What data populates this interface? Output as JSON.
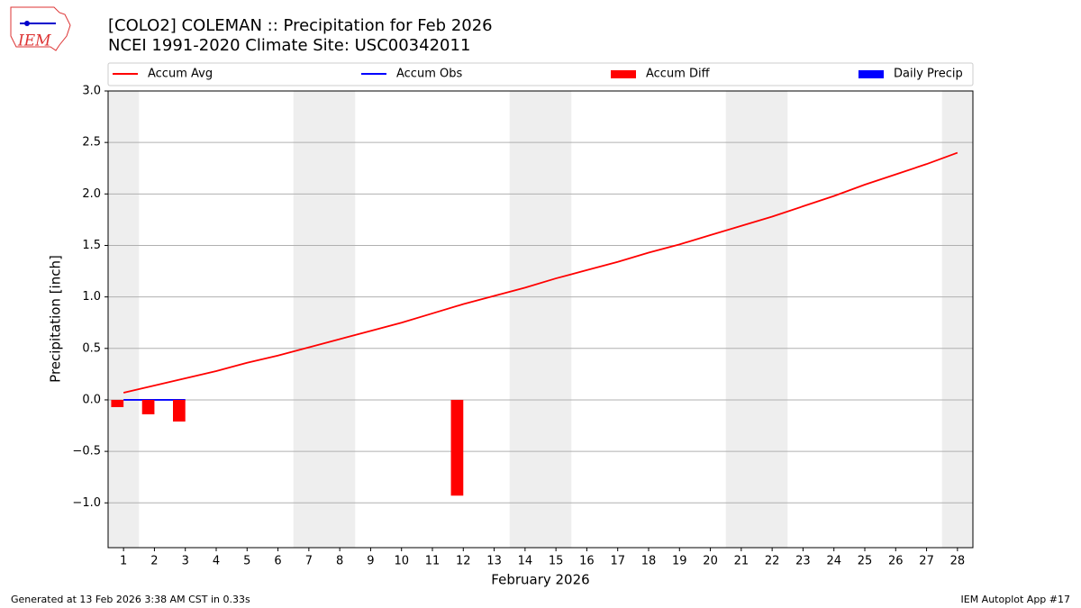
{
  "chart_data": {
    "type": "line",
    "title": "[COLO2] COLEMAN :: Precipitation for Feb 2026",
    "subtitle": "NCEI 1991-2020 Climate Site: USC00342011",
    "logo_text": "IEM",
    "x_label": "February 2026",
    "y_label": "Precipitation [inch]",
    "footer_left": "Generated at 13 Feb 2026 3:38 AM CST in 0.33s",
    "footer_right": "IEM Autoplot App #17",
    "x": [
      1,
      2,
      3,
      4,
      5,
      6,
      7,
      8,
      9,
      10,
      11,
      12,
      13,
      14,
      15,
      16,
      17,
      18,
      19,
      20,
      21,
      22,
      23,
      24,
      25,
      26,
      27,
      28
    ],
    "xlim": [
      0.5,
      28.5
    ],
    "xticks": [
      1,
      2,
      3,
      4,
      5,
      6,
      7,
      8,
      9,
      10,
      11,
      12,
      13,
      14,
      15,
      16,
      17,
      18,
      19,
      20,
      21,
      22,
      23,
      24,
      25,
      26,
      27,
      28
    ],
    "ylim": [
      -1.435,
      3.0
    ],
    "yticks": [
      {
        "value": -1.0,
        "label": "−1.0"
      },
      {
        "value": -0.5,
        "label": "−0.5"
      },
      {
        "value": 0,
        "label": "0.0"
      },
      {
        "value": 0.5,
        "label": "0.5"
      },
      {
        "value": 1.0,
        "label": "1.0"
      },
      {
        "value": 1.5,
        "label": "1.5"
      },
      {
        "value": 2.0,
        "label": "2.0"
      },
      {
        "value": 2.5,
        "label": "2.5"
      },
      {
        "value": 3.0,
        "label": "3.0"
      }
    ],
    "grid": true,
    "weekend_shading": [
      [
        0.5,
        1.5
      ],
      [
        6.5,
        8.5
      ],
      [
        13.5,
        15.5
      ],
      [
        20.5,
        22.5
      ],
      [
        27.5,
        28.5
      ]
    ],
    "legend": "top",
    "series": [
      {
        "name": "Accum Avg",
        "type": "line",
        "color": "#ff0000",
        "values": [
          0.07,
          0.14,
          0.21,
          0.28,
          0.36,
          0.43,
          0.51,
          0.59,
          0.67,
          0.75,
          0.84,
          0.93,
          1.01,
          1.09,
          1.18,
          1.26,
          1.34,
          1.43,
          1.51,
          1.6,
          1.69,
          1.78,
          1.88,
          1.98,
          2.09,
          2.19,
          2.29,
          2.4
        ]
      },
      {
        "name": "Accum Obs",
        "type": "line",
        "color": "#0000ff",
        "values": [
          0,
          0,
          0,
          null,
          null,
          null,
          null,
          null,
          null,
          null,
          null,
          null,
          null,
          null,
          null,
          null,
          null,
          null,
          null,
          null,
          null,
          null,
          null,
          null,
          null,
          null,
          null,
          null
        ]
      },
      {
        "name": "Accum Diff",
        "type": "bar",
        "color": "#ff0000",
        "values": [
          -0.07,
          -0.14,
          -0.21,
          null,
          null,
          null,
          null,
          null,
          null,
          null,
          null,
          -0.93,
          null,
          null,
          null,
          null,
          null,
          null,
          null,
          null,
          null,
          null,
          null,
          null,
          null,
          null,
          null,
          null
        ]
      },
      {
        "name": "Daily Precip",
        "type": "bar",
        "color": "#0000ff",
        "values": [
          0,
          0,
          0,
          null,
          null,
          null,
          null,
          null,
          null,
          null,
          null,
          null,
          null,
          null,
          null,
          null,
          null,
          null,
          null,
          null,
          null,
          null,
          null,
          null,
          null,
          null,
          null,
          null
        ]
      }
    ]
  }
}
